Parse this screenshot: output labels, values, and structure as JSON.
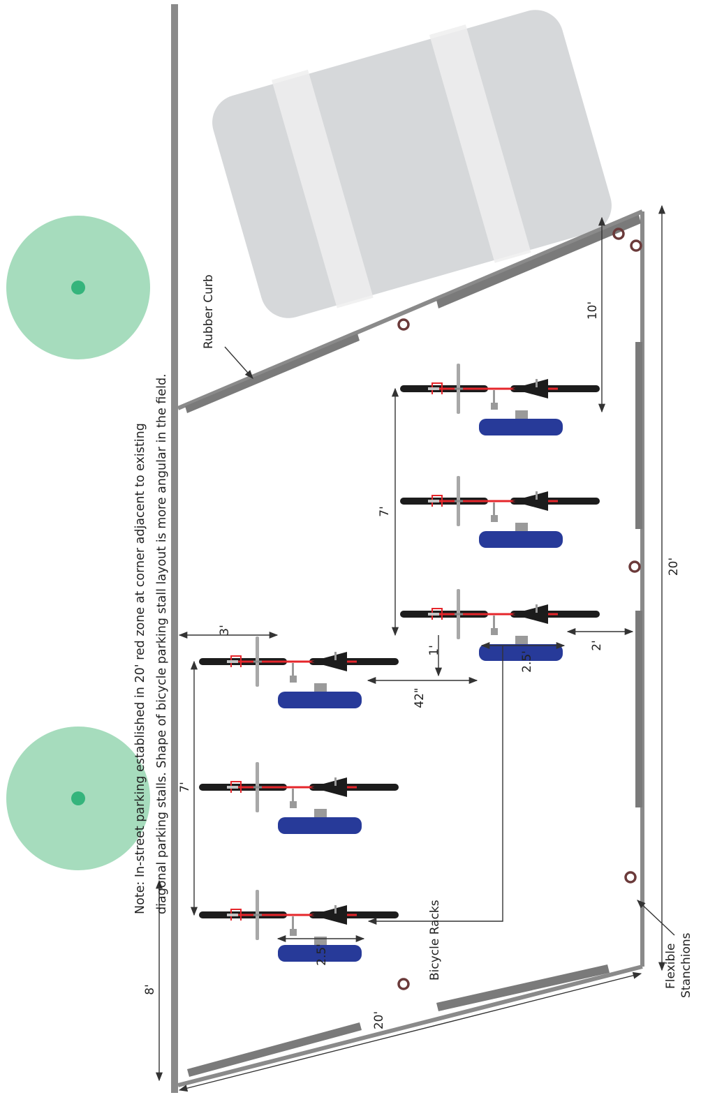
{
  "colors": {
    "tree_canopy": "#a6dcbd",
    "tree_trunk": "#35b47c",
    "curb_line": "#8a8a8a",
    "rubber_curb": "#7a7a7a",
    "car_body": "#d6d8da",
    "car_stripe": "#eeefef",
    "stanchion": "#6b3a3a",
    "bike_tire": "#1c1c1c",
    "bike_frame": "#e5262b",
    "rack": "#273a99",
    "dimension_line": "#333333"
  },
  "note": {
    "line1": "Note: In-street parking established in 20' red zone at corner adjacent to existing",
    "line2": "diagonal parking stalls. Shape of bicycle parking stall layout is more angular in the field."
  },
  "labels": {
    "rubber_curb": "Rubber Curb",
    "bicycle_racks": "Bicycle Racks",
    "stanchions_line1": "Flexible",
    "stanchions_line2": "Stanchions"
  },
  "dimensions": {
    "buffer_width": "8'",
    "diagonal_length": "20'",
    "row_spacing_upper": "7'",
    "row_spacing_lower": "7'",
    "bike_offset": "3'",
    "rack_length_upper": "2.5'",
    "aisle_width": "42\"",
    "rack_offset": "1'",
    "rack_length_lower": "2.5'",
    "rack_to_curb": "2'",
    "curb_clearance": "10'",
    "zone_length": "20'"
  }
}
